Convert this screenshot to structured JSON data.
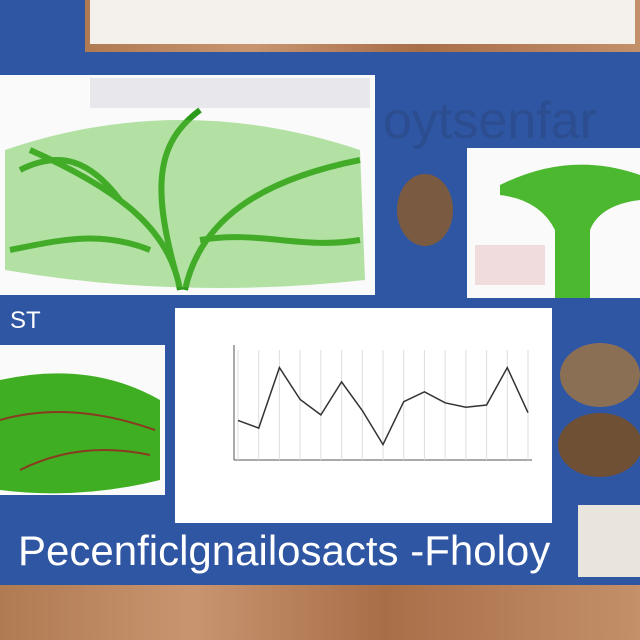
{
  "header": {
    "title": "oytsenfar"
  },
  "side_label": "ST",
  "footer": {
    "title": "Pecenficlgnailosacts -Fholoy"
  },
  "chart_data": {
    "type": "line",
    "values": [
      3.6,
      2.9,
      8.4,
      5.5,
      4.1,
      7.1,
      4.5,
      1.4,
      5.3,
      6.2,
      5.2,
      4.8,
      5.0,
      8.4,
      4.3
    ],
    "color": "#333333",
    "ylim": [
      0,
      10
    ],
    "grid": true
  }
}
